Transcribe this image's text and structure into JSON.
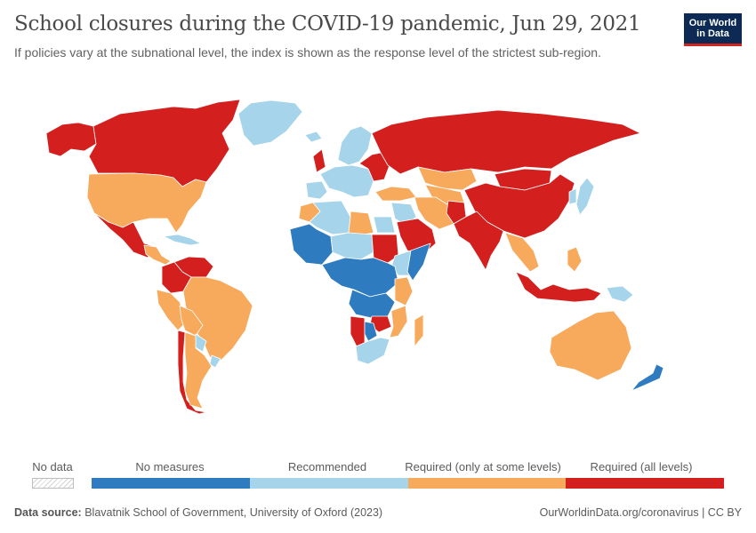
{
  "header": {
    "title": "School closures during the COVID-19 pandemic, Jun 29, 2021",
    "subtitle": "If policies vary at the subnational level, the index is shown as the response level of the strictest sub-region."
  },
  "logo": {
    "line1": "Our World",
    "line2": "in Data"
  },
  "colors": {
    "no_measures": "#2e7bbf",
    "recommended": "#a6d4ea",
    "required_some": "#f7a95c",
    "required_all": "#d3201e",
    "no_data": "#e6e6e6",
    "border": "#ffffff"
  },
  "legend": {
    "no_data_label": "No data",
    "bins": [
      {
        "label": "No measures",
        "color": "#2e7bbf"
      },
      {
        "label": "Recommended",
        "color": "#a6d4ea"
      },
      {
        "label": "Required (only at some levels)",
        "color": "#f7a95c"
      },
      {
        "label": "Required (all levels)",
        "color": "#d3201e"
      }
    ]
  },
  "footer": {
    "source_label": "Data source:",
    "source_text": "Blavatnik School of Government, University of Oxford (2023)",
    "credit": "OurWorldinData.org/coronavirus | CC BY"
  },
  "map_regions": [
    {
      "name": "alaska",
      "level": "required_all"
    },
    {
      "name": "canada",
      "level": "required_all"
    },
    {
      "name": "greenland",
      "level": "recommended"
    },
    {
      "name": "usa",
      "level": "required_some"
    },
    {
      "name": "mexico",
      "level": "required_all"
    },
    {
      "name": "central-america",
      "level": "required_some"
    },
    {
      "name": "caribbean",
      "level": "recommended"
    },
    {
      "name": "venezuela",
      "level": "required_all"
    },
    {
      "name": "colombia",
      "level": "required_all"
    },
    {
      "name": "peru",
      "level": "required_some"
    },
    {
      "name": "brazil",
      "level": "required_some"
    },
    {
      "name": "bolivia",
      "level": "required_some"
    },
    {
      "name": "paraguay",
      "level": "recommended"
    },
    {
      "name": "chile",
      "level": "required_all"
    },
    {
      "name": "argentina",
      "level": "required_some"
    },
    {
      "name": "uruguay",
      "level": "recommended"
    },
    {
      "name": "iceland",
      "level": "recommended"
    },
    {
      "name": "uk",
      "level": "required_all"
    },
    {
      "name": "scandinavia",
      "level": "recommended"
    },
    {
      "name": "western-europe",
      "level": "recommended"
    },
    {
      "name": "iberia",
      "level": "recommended"
    },
    {
      "name": "eastern-europe",
      "level": "required_all"
    },
    {
      "name": "russia",
      "level": "required_all"
    },
    {
      "name": "turkey",
      "level": "required_some"
    },
    {
      "name": "kazakhstan",
      "level": "required_some"
    },
    {
      "name": "central-asia",
      "level": "required_some"
    },
    {
      "name": "mongolia",
      "level": "required_all"
    },
    {
      "name": "china",
      "level": "required_all"
    },
    {
      "name": "japan",
      "level": "recommended"
    },
    {
      "name": "korea",
      "level": "recommended"
    },
    {
      "name": "middle-east",
      "level": "recommended"
    },
    {
      "name": "saudi-arabia",
      "level": "required_all"
    },
    {
      "name": "iran",
      "level": "required_some"
    },
    {
      "name": "afghanistan",
      "level": "required_all"
    },
    {
      "name": "india",
      "level": "required_all"
    },
    {
      "name": "southeast-asia",
      "level": "required_some"
    },
    {
      "name": "indonesia",
      "level": "required_all"
    },
    {
      "name": "philippines",
      "level": "required_some"
    },
    {
      "name": "papua-new-guinea",
      "level": "recommended"
    },
    {
      "name": "morocco",
      "level": "required_some"
    },
    {
      "name": "algeria",
      "level": "recommended"
    },
    {
      "name": "libya",
      "level": "required_some"
    },
    {
      "name": "egypt",
      "level": "recommended"
    },
    {
      "name": "west-africa",
      "level": "no_measures"
    },
    {
      "name": "sahel",
      "level": "recommended"
    },
    {
      "name": "sudan",
      "level": "required_all"
    },
    {
      "name": "ethiopia",
      "level": "recommended"
    },
    {
      "name": "somalia",
      "level": "no_measures"
    },
    {
      "name": "central-africa",
      "level": "no_measures"
    },
    {
      "name": "east-africa",
      "level": "required_some"
    },
    {
      "name": "angola-zambia",
      "level": "no_measures"
    },
    {
      "name": "zimbabwe",
      "level": "required_all"
    },
    {
      "name": "namibia",
      "level": "required_all"
    },
    {
      "name": "botswana",
      "level": "no_measures"
    },
    {
      "name": "mozambique",
      "level": "required_some"
    },
    {
      "name": "south-africa",
      "level": "recommended"
    },
    {
      "name": "madagascar",
      "level": "required_some"
    },
    {
      "name": "australia",
      "level": "required_some"
    },
    {
      "name": "new-zealand",
      "level": "no_measures"
    }
  ]
}
